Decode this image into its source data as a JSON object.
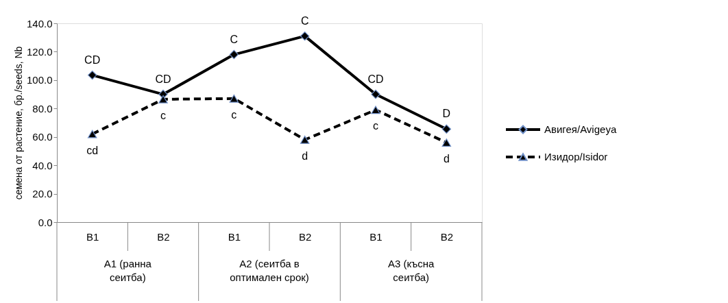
{
  "chart_data": {
    "type": "line",
    "ylabel": "семена от растение, бр./seeds, Nb",
    "categories": [
      "B1",
      "B2",
      "B1",
      "B2",
      "B1",
      "B2"
    ],
    "annotations": [
      "А1 (ранна сеитба)",
      "А2 (сеитба в оптимален срок)",
      "А3 (късна сеитба)"
    ],
    "series": [
      {
        "name": "Авигея/Avigeya",
        "color": "#000000",
        "marker": "diamond",
        "line_style": "solid",
        "values": [
          103.5,
          90,
          118,
          131,
          90,
          65.5
        ],
        "value_labels": [
          "CD",
          "CD",
          "C",
          "C",
          "CD",
          "D"
        ]
      },
      {
        "name": "Изидор/Isidor",
        "color": "#000000",
        "marker": "triangle",
        "line_style": "dashed",
        "values": [
          62,
          86.5,
          87,
          58,
          79,
          56
        ],
        "value_labels": [
          "cd",
          "c",
          "c",
          "d",
          "c",
          "d"
        ]
      }
    ],
    "ylim": [
      0,
      140
    ],
    "yticks": [
      {
        "value": 0,
        "label": "0.0"
      },
      {
        "value": 20,
        "label": "20.0"
      },
      {
        "value": 40,
        "label": "40.0"
      },
      {
        "value": 60,
        "label": "60.0"
      },
      {
        "value": 80,
        "label": "80.0"
      },
      {
        "value": 100,
        "label": "100.0"
      },
      {
        "value": 120,
        "label": "120.0"
      },
      {
        "value": 140,
        "label": "140.0"
      }
    ],
    "grid": false,
    "legend": "right"
  }
}
